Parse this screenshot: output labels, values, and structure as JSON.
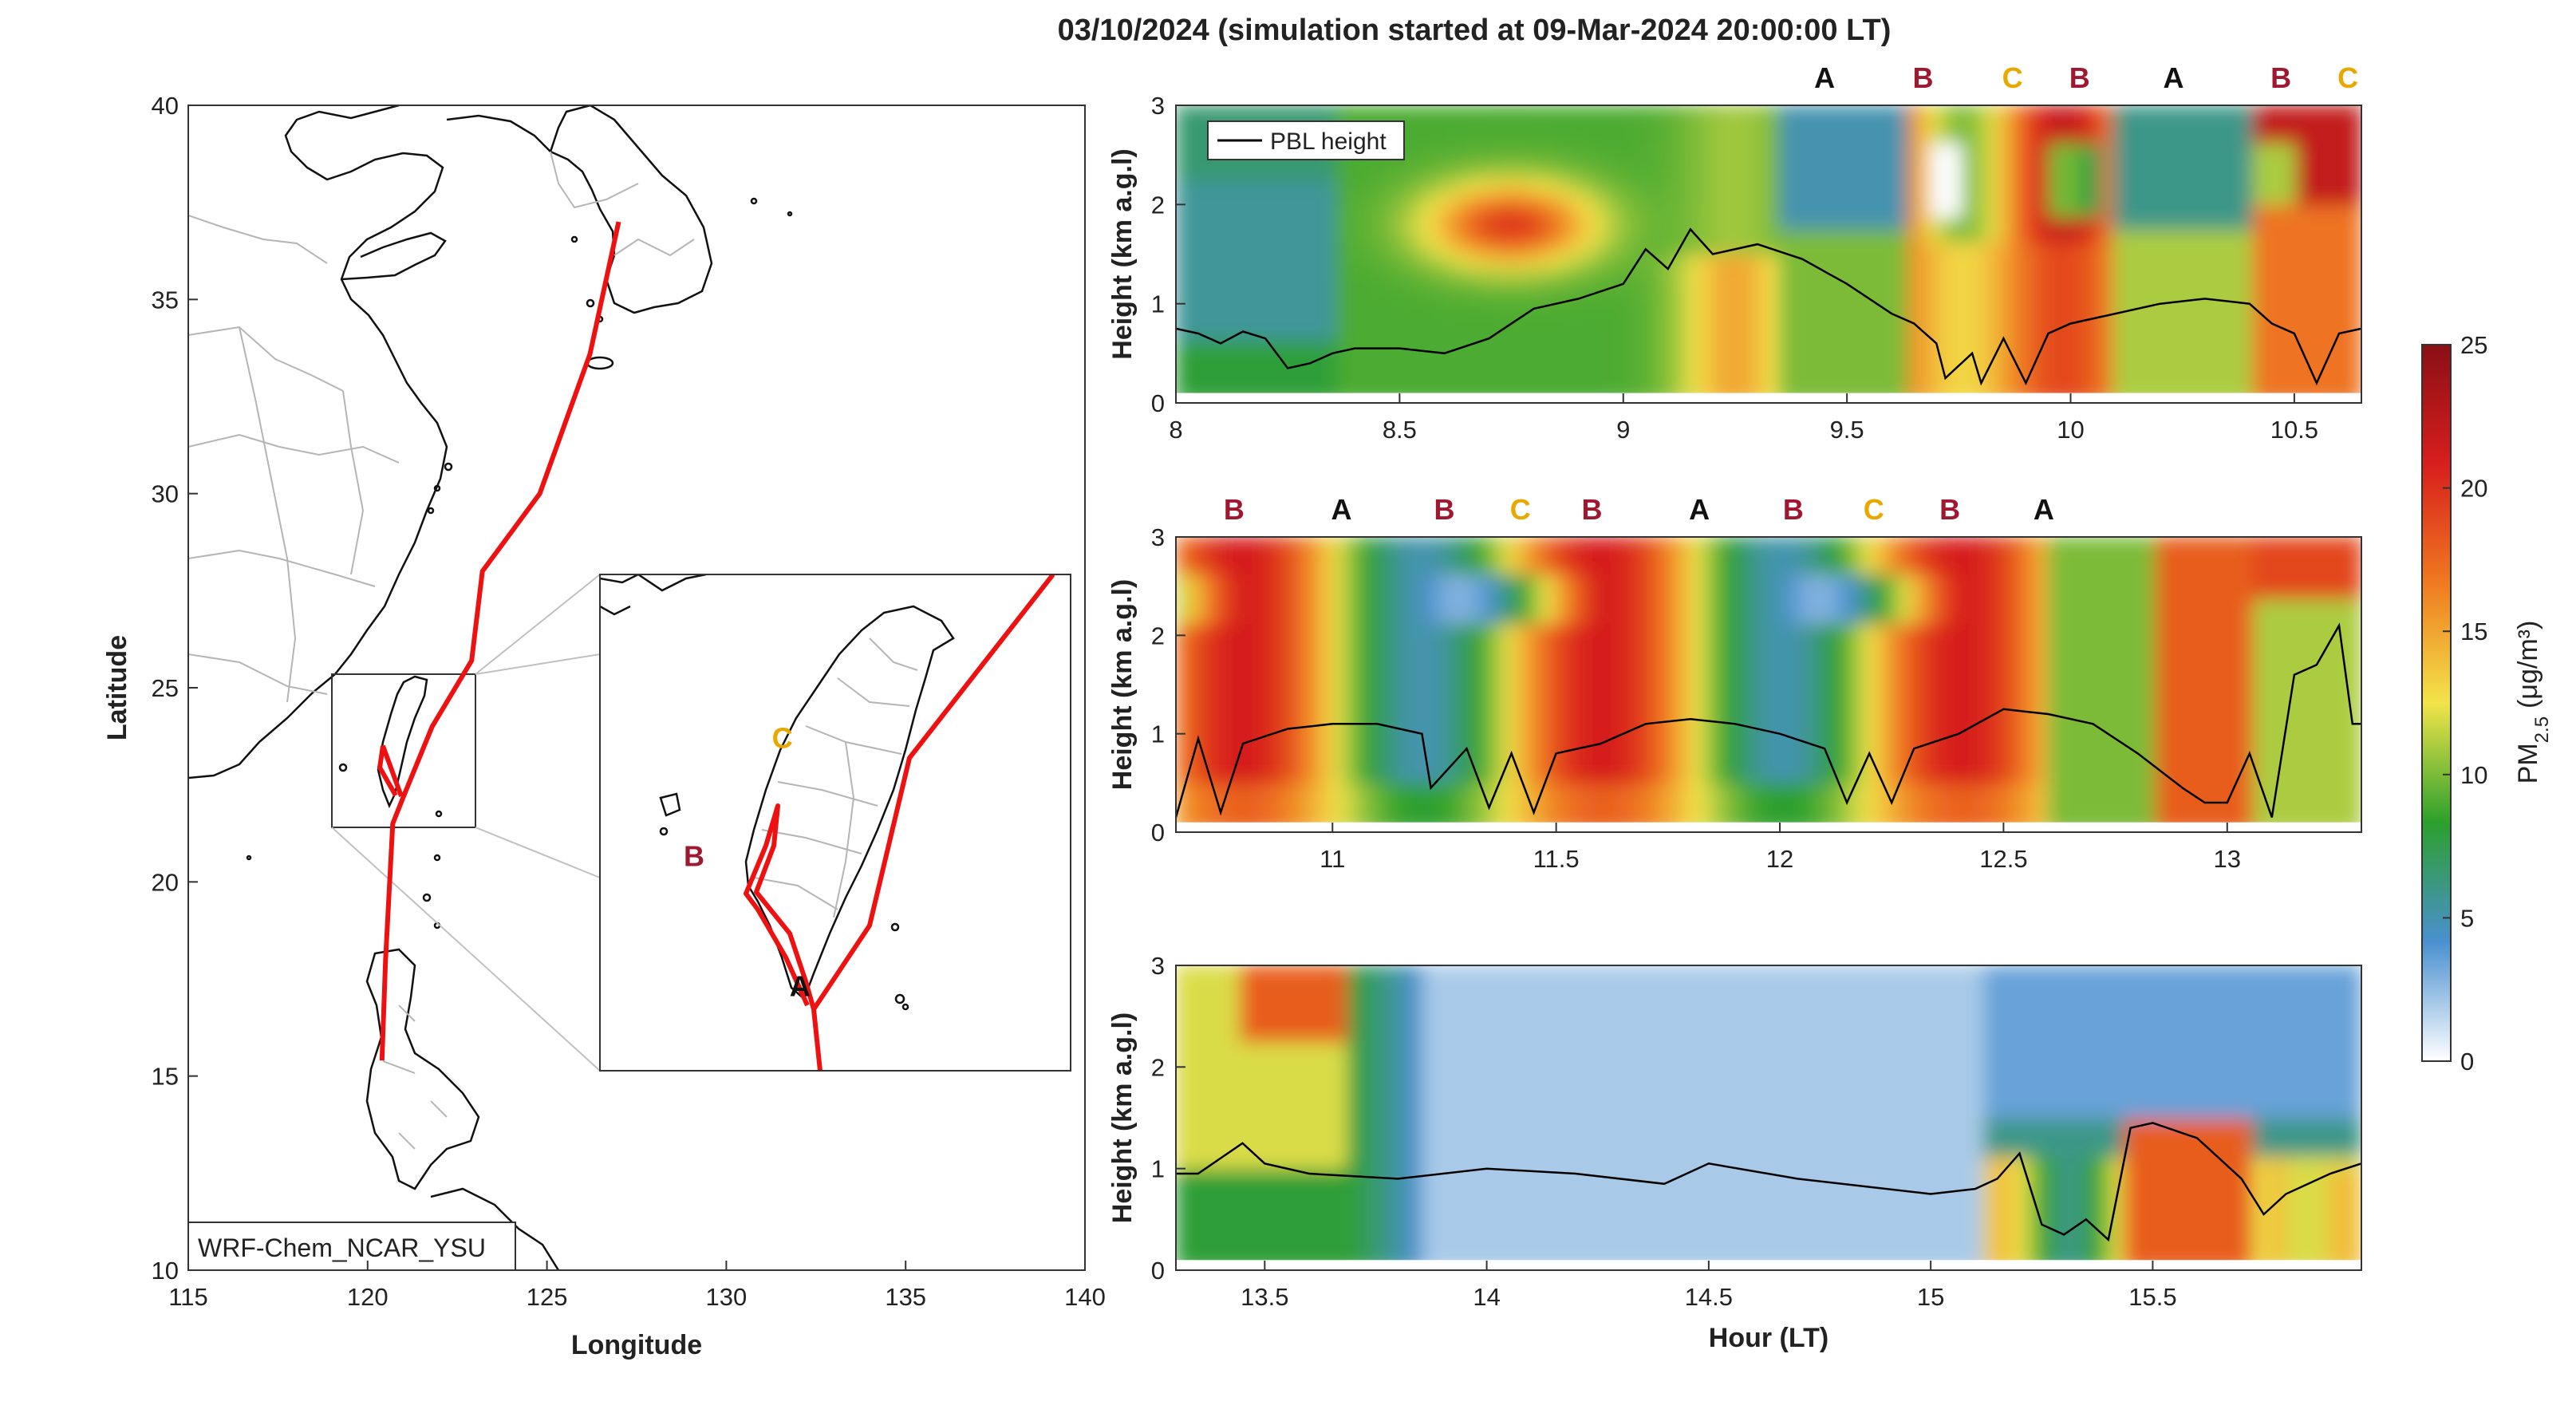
{
  "figure": {
    "title": "03/10/2024 (simulation started at 09-Mar-2024 20:00:00 LT)"
  },
  "chart_data": [
    {
      "type": "map",
      "name": "trajectory-map",
      "xlabel": "Longitude",
      "ylabel": "Latitude",
      "xlim": [
        115,
        140
      ],
      "ylim": [
        10,
        40
      ],
      "xticks": [
        "115",
        "120",
        "125",
        "130",
        "135",
        "140"
      ],
      "yticks": [
        "10",
        "15",
        "20",
        "25",
        "30",
        "35",
        "40"
      ],
      "model_label": "WRF-Chem_NCAR_YSU",
      "trajectory_color": "#ee1111",
      "trajectory": [
        [
          127.0,
          37.0
        ],
        [
          126.2,
          33.6
        ],
        [
          124.8,
          30.0
        ],
        [
          123.2,
          28.0
        ],
        [
          122.9,
          25.7
        ],
        [
          121.8,
          24.0
        ],
        [
          121.0,
          22.2
        ],
        [
          120.7,
          21.5
        ],
        [
          120.5,
          18.0
        ],
        [
          120.4,
          15.4
        ]
      ],
      "inset": {
        "xlim": [
          119.0,
          123.0
        ],
        "ylim": [
          21.5,
          25.5
        ],
        "points": [
          {
            "label": "A",
            "lon": 120.7,
            "lat": 22.1,
            "color": "#111111"
          },
          {
            "label": "B",
            "lon": 119.8,
            "lat": 23.15,
            "color": "#a01830"
          },
          {
            "label": "C",
            "lon": 120.55,
            "lat": 24.1,
            "color": "#e8a800"
          }
        ]
      }
    },
    {
      "type": "heatmap",
      "name": "curtain-1",
      "ylabel": "Height (km a.g.l)",
      "xlim": [
        8.0,
        10.65
      ],
      "ylim": [
        0,
        3
      ],
      "xticks": [
        "8",
        "8.5",
        "9",
        "9.5",
        "10",
        "10.5"
      ],
      "yticks": [
        "0",
        "1",
        "2",
        "3"
      ],
      "legend": "PBL height",
      "markers": [
        {
          "label": "A",
          "x": 9.45,
          "color": "#111111"
        },
        {
          "label": "B",
          "x": 9.67,
          "color": "#a01830"
        },
        {
          "label": "C",
          "x": 9.87,
          "color": "#e8a800"
        },
        {
          "label": "B",
          "x": 10.02,
          "color": "#a01830"
        },
        {
          "label": "A",
          "x": 10.23,
          "color": "#111111"
        },
        {
          "label": "B",
          "x": 10.47,
          "color": "#a01830"
        },
        {
          "label": "C",
          "x": 10.62,
          "color": "#e8a800"
        }
      ],
      "pbl": [
        [
          8.0,
          0.75
        ],
        [
          8.05,
          0.7
        ],
        [
          8.1,
          0.6
        ],
        [
          8.15,
          0.72
        ],
        [
          8.2,
          0.65
        ],
        [
          8.25,
          0.35
        ],
        [
          8.3,
          0.4
        ],
        [
          8.35,
          0.5
        ],
        [
          8.4,
          0.55
        ],
        [
          8.5,
          0.55
        ],
        [
          8.6,
          0.5
        ],
        [
          8.7,
          0.65
        ],
        [
          8.8,
          0.95
        ],
        [
          8.9,
          1.05
        ],
        [
          9.0,
          1.2
        ],
        [
          9.05,
          1.55
        ],
        [
          9.1,
          1.35
        ],
        [
          9.15,
          1.75
        ],
        [
          9.2,
          1.5
        ],
        [
          9.3,
          1.6
        ],
        [
          9.4,
          1.45
        ],
        [
          9.5,
          1.2
        ],
        [
          9.6,
          0.9
        ],
        [
          9.65,
          0.8
        ],
        [
          9.7,
          0.6
        ],
        [
          9.72,
          0.25
        ],
        [
          9.78,
          0.5
        ],
        [
          9.8,
          0.2
        ],
        [
          9.85,
          0.65
        ],
        [
          9.9,
          0.2
        ],
        [
          9.95,
          0.7
        ],
        [
          10.0,
          0.8
        ],
        [
          10.1,
          0.9
        ],
        [
          10.2,
          1.0
        ],
        [
          10.3,
          1.05
        ],
        [
          10.4,
          1.0
        ],
        [
          10.45,
          0.8
        ],
        [
          10.5,
          0.7
        ],
        [
          10.55,
          0.2
        ],
        [
          10.6,
          0.7
        ],
        [
          10.65,
          0.75
        ]
      ]
    },
    {
      "type": "heatmap",
      "name": "curtain-2",
      "ylabel": "Height (km a.g.l)",
      "xlim": [
        10.65,
        13.3
      ],
      "ylim": [
        0,
        3
      ],
      "xticks": [
        "11",
        "11.5",
        "12",
        "12.5",
        "13"
      ],
      "yticks": [
        "0",
        "1",
        "2",
        "3"
      ],
      "markers": [
        {
          "label": "B",
          "x": 10.78,
          "color": "#a01830"
        },
        {
          "label": "A",
          "x": 11.02,
          "color": "#111111"
        },
        {
          "label": "B",
          "x": 11.25,
          "color": "#a01830"
        },
        {
          "label": "C",
          "x": 11.42,
          "color": "#e8a800"
        },
        {
          "label": "B",
          "x": 11.58,
          "color": "#a01830"
        },
        {
          "label": "A",
          "x": 11.82,
          "color": "#111111"
        },
        {
          "label": "B",
          "x": 12.03,
          "color": "#a01830"
        },
        {
          "label": "C",
          "x": 12.21,
          "color": "#e8a800"
        },
        {
          "label": "B",
          "x": 12.38,
          "color": "#a01830"
        },
        {
          "label": "A",
          "x": 12.59,
          "color": "#111111"
        }
      ],
      "pbl": [
        [
          10.65,
          0.15
        ],
        [
          10.7,
          0.95
        ],
        [
          10.75,
          0.2
        ],
        [
          10.8,
          0.9
        ],
        [
          10.9,
          1.05
        ],
        [
          11.0,
          1.1
        ],
        [
          11.1,
          1.1
        ],
        [
          11.2,
          1.0
        ],
        [
          11.22,
          0.45
        ],
        [
          11.3,
          0.85
        ],
        [
          11.35,
          0.25
        ],
        [
          11.4,
          0.8
        ],
        [
          11.45,
          0.2
        ],
        [
          11.5,
          0.8
        ],
        [
          11.6,
          0.9
        ],
        [
          11.7,
          1.1
        ],
        [
          11.8,
          1.15
        ],
        [
          11.9,
          1.1
        ],
        [
          12.0,
          1.0
        ],
        [
          12.1,
          0.85
        ],
        [
          12.15,
          0.3
        ],
        [
          12.2,
          0.8
        ],
        [
          12.25,
          0.3
        ],
        [
          12.3,
          0.85
        ],
        [
          12.4,
          1.0
        ],
        [
          12.5,
          1.25
        ],
        [
          12.6,
          1.2
        ],
        [
          12.7,
          1.1
        ],
        [
          12.8,
          0.8
        ],
        [
          12.9,
          0.45
        ],
        [
          12.95,
          0.3
        ],
        [
          13.0,
          0.3
        ],
        [
          13.05,
          0.8
        ],
        [
          13.1,
          0.15
        ],
        [
          13.15,
          1.6
        ],
        [
          13.2,
          1.7
        ],
        [
          13.25,
          2.1
        ],
        [
          13.28,
          1.1
        ],
        [
          13.3,
          1.1
        ]
      ]
    },
    {
      "type": "heatmap",
      "name": "curtain-3",
      "xlabel": "Hour (LT)",
      "ylabel": "Height (km a.g.l)",
      "xlim": [
        13.3,
        15.97
      ],
      "ylim": [
        0,
        3
      ],
      "xticks": [
        "13.5",
        "14",
        "14.5",
        "15",
        "15.5"
      ],
      "yticks": [
        "0",
        "1",
        "2",
        "3"
      ],
      "pbl": [
        [
          13.3,
          0.95
        ],
        [
          13.35,
          0.95
        ],
        [
          13.4,
          1.1
        ],
        [
          13.45,
          1.25
        ],
        [
          13.5,
          1.05
        ],
        [
          13.6,
          0.95
        ],
        [
          13.8,
          0.9
        ],
        [
          14.0,
          1.0
        ],
        [
          14.2,
          0.95
        ],
        [
          14.4,
          0.85
        ],
        [
          14.5,
          1.05
        ],
        [
          14.7,
          0.9
        ],
        [
          15.0,
          0.75
        ],
        [
          15.1,
          0.8
        ],
        [
          15.15,
          0.9
        ],
        [
          15.2,
          1.15
        ],
        [
          15.25,
          0.45
        ],
        [
          15.3,
          0.35
        ],
        [
          15.35,
          0.5
        ],
        [
          15.4,
          0.3
        ],
        [
          15.45,
          1.4
        ],
        [
          15.5,
          1.45
        ],
        [
          15.6,
          1.3
        ],
        [
          15.7,
          0.9
        ],
        [
          15.75,
          0.55
        ],
        [
          15.8,
          0.75
        ],
        [
          15.9,
          0.95
        ],
        [
          15.97,
          1.05
        ]
      ]
    }
  ],
  "colorbar": {
    "label": "PM",
    "label_sub": "2.5",
    "units": "(μg/m³)",
    "ticks": [
      "0",
      "5",
      "10",
      "15",
      "20",
      "25"
    ],
    "range": [
      0,
      25
    ],
    "colors": [
      "#ffffff",
      "#4a90d0",
      "#2ca02c",
      "#f2e44a",
      "#f07a20",
      "#d81e1e",
      "#8a0f14"
    ]
  }
}
